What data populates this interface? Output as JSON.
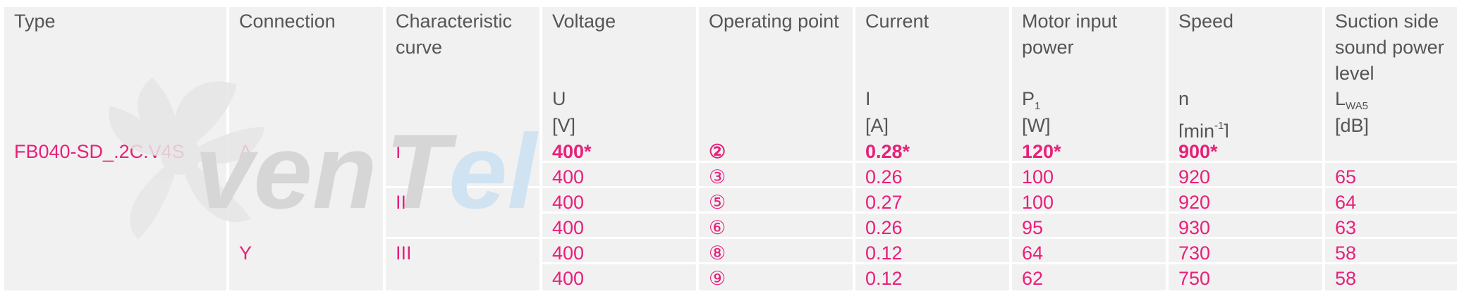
{
  "headers": [
    {
      "title": "Type",
      "sym": "",
      "sub": "",
      "sup": "",
      "unit": ""
    },
    {
      "title": "Connection",
      "sym": "",
      "sub": "",
      "sup": "",
      "unit": ""
    },
    {
      "title": "Characteristic curve",
      "sym": "",
      "sub": "",
      "sup": "",
      "unit": ""
    },
    {
      "title": "Voltage",
      "sym": "U",
      "sub": "",
      "sup": "",
      "unit": "[V]"
    },
    {
      "title": "Operating point",
      "sym": "",
      "sub": "",
      "sup": "",
      "unit": ""
    },
    {
      "title": "Current",
      "sym": "I",
      "sub": "",
      "sup": "",
      "unit": "[A]"
    },
    {
      "title": "Motor input power",
      "sym": "P",
      "sub": "1",
      "sup": "",
      "unit": "[W]"
    },
    {
      "title": "Speed",
      "sym": "n",
      "sub": "",
      "sup": "",
      "unit": "[min-1]"
    },
    {
      "title": "Suction side sound power level",
      "sym": "L",
      "sub": "WA5",
      "sup": "",
      "unit": "[dB]"
    }
  ],
  "speed_unit": {
    "base": "[min",
    "exp": "-1",
    "close": "]"
  },
  "type_value": "FB040-SD_.2C.V4S",
  "connections": [
    "Δ",
    "Y"
  ],
  "curves": [
    "I",
    "II",
    "III"
  ],
  "rows": [
    {
      "voltage": "400*",
      "point": "②",
      "current": "0.28*",
      "power": "120*",
      "speed": "900*",
      "sound": "",
      "bold": true
    },
    {
      "voltage": "400",
      "point": "③",
      "current": "0.26",
      "power": "100",
      "speed": "920",
      "sound": "65",
      "bold": false
    },
    {
      "voltage": "400",
      "point": "⑤",
      "current": "0.27",
      "power": "100",
      "speed": "920",
      "sound": "64",
      "bold": false
    },
    {
      "voltage": "400",
      "point": "⑥",
      "current": "0.26",
      "power": "95",
      "speed": "930",
      "sound": "63",
      "bold": false
    },
    {
      "voltage": "400",
      "point": "⑧",
      "current": "0.12",
      "power": "64",
      "speed": "730",
      "sound": "58",
      "bold": false
    },
    {
      "voltage": "400",
      "point": "⑨",
      "current": "0.12",
      "power": "62",
      "speed": "750",
      "sound": "58",
      "bold": false
    }
  ],
  "watermark": {
    "text": "venTel",
    "colors": {
      "gray": "#d6d6d6",
      "blue": "#cfe3f2"
    }
  },
  "colors": {
    "accent": "#e8207a",
    "header_text": "#555555",
    "cell_bg": "#f1f1f1"
  }
}
